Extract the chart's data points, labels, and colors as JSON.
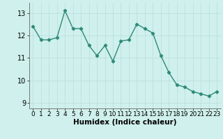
{
  "x": [
    0,
    1,
    2,
    3,
    4,
    5,
    6,
    7,
    8,
    9,
    10,
    11,
    12,
    13,
    14,
    15,
    16,
    17,
    18,
    19,
    20,
    21,
    22,
    23
  ],
  "y": [
    12.4,
    11.8,
    11.8,
    11.9,
    13.1,
    12.3,
    12.3,
    11.55,
    11.1,
    11.55,
    10.85,
    11.75,
    11.8,
    12.5,
    12.3,
    12.1,
    11.1,
    10.35,
    9.8,
    9.7,
    9.5,
    9.4,
    9.3,
    9.5
  ],
  "line_color": "#2e8b77",
  "marker": "D",
  "markersize": 2.2,
  "linewidth": 1.0,
  "bg_color": "#cff0ec",
  "grid_color": "#b8deda",
  "xlabel": "Humidex (Indice chaleur)",
  "xlabel_fontsize": 7.5,
  "yticks": [
    9,
    10,
    11,
    12,
    13
  ],
  "xticks": [
    0,
    1,
    2,
    3,
    4,
    5,
    6,
    7,
    8,
    9,
    10,
    11,
    12,
    13,
    14,
    15,
    16,
    17,
    18,
    19,
    20,
    21,
    22,
    23
  ],
  "ylim": [
    8.75,
    13.45
  ],
  "xlim": [
    -0.5,
    23.5
  ],
  "tick_fontsize": 6.5,
  "ytick_fontsize": 7.0
}
